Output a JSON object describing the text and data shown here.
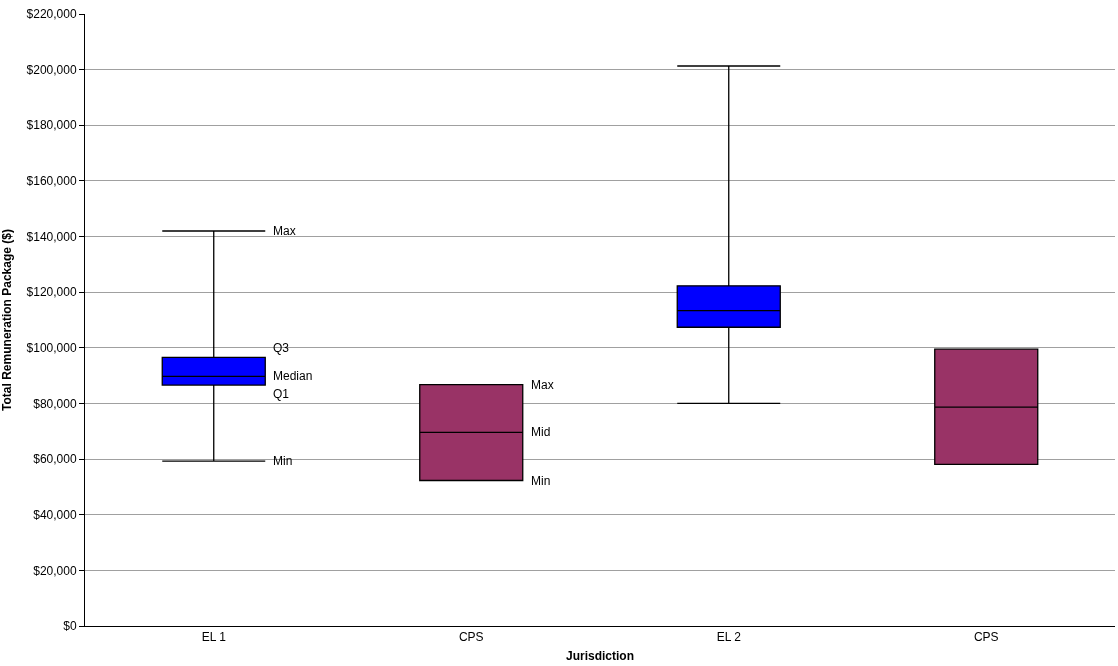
{
  "chart_data": {
    "type": "box",
    "xlabel": "Jurisdiction",
    "ylabel": "Total Remuneration Package ($)",
    "categories": [
      "EL 1",
      "CPS",
      "EL 2",
      "CPS"
    ],
    "series": [
      {
        "color": "#0000ff",
        "boxes": [
          {
            "low": 59300,
            "q1": 86600,
            "median": 89700,
            "q3": 96600,
            "high": 142000
          },
          null,
          {
            "low": 80000,
            "q1": 107400,
            "median": 113400,
            "q3": 122300,
            "high": 201300
          },
          null
        ]
      },
      {
        "color": "#993366",
        "boxes": [
          null,
          {
            "low": 52300,
            "q1": 52300,
            "median": 69600,
            "q3": 86800,
            "high": 86800
          },
          null,
          {
            "low": 58100,
            "q1": 58100,
            "median": 78700,
            "q3": 99500,
            "high": 99500
          }
        ]
      }
    ],
    "ylim": [
      0,
      220000
    ],
    "yticks": [
      {
        "value": 0,
        "label": "$0"
      },
      {
        "value": 20000,
        "label": "$20,000"
      },
      {
        "value": 40000,
        "label": "$40,000"
      },
      {
        "value": 60000,
        "label": "$60,000"
      },
      {
        "value": 80000,
        "label": "$80,000"
      },
      {
        "value": 100000,
        "label": "$100,000"
      },
      {
        "value": 120000,
        "label": "$120,000"
      },
      {
        "value": 140000,
        "label": "$140,000"
      },
      {
        "value": 160000,
        "label": "$160,000"
      },
      {
        "value": 180000,
        "label": "$180,000"
      },
      {
        "value": 200000,
        "label": "$200,000"
      },
      {
        "value": 220000,
        "label": "$220,000"
      }
    ],
    "grid": "y",
    "legend": false,
    "annotations": [
      "Max",
      "Q3",
      "Median",
      "Q1",
      "Min",
      "Max",
      "Mid",
      "Min"
    ]
  }
}
